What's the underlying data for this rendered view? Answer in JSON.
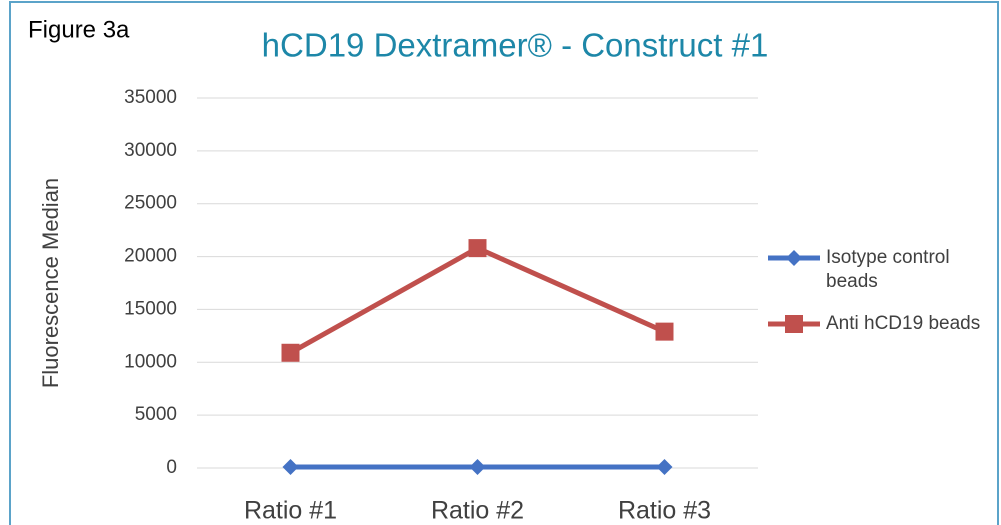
{
  "chart_data": {
    "type": "line",
    "figure_label": "Figure 3a",
    "title": "hCD19 Dextramer® - Construct #1",
    "y_label": "Fluorescence Median",
    "categories": [
      "Ratio #1",
      "Ratio #2",
      "Ratio #3"
    ],
    "series": [
      {
        "name": "Isotype control beads",
        "color": "#4472c4",
        "marker": "diamond",
        "values": [
          100,
          100,
          100
        ]
      },
      {
        "name": "Anti hCD19 beads",
        "color": "#c0504d",
        "marker": "square",
        "values": [
          10900,
          20800,
          12900
        ]
      }
    ],
    "ylim": [
      0,
      35000
    ],
    "yticks": [
      0,
      5000,
      10000,
      15000,
      20000,
      25000,
      30000,
      35000
    ],
    "grid": true,
    "legend": "right"
  }
}
